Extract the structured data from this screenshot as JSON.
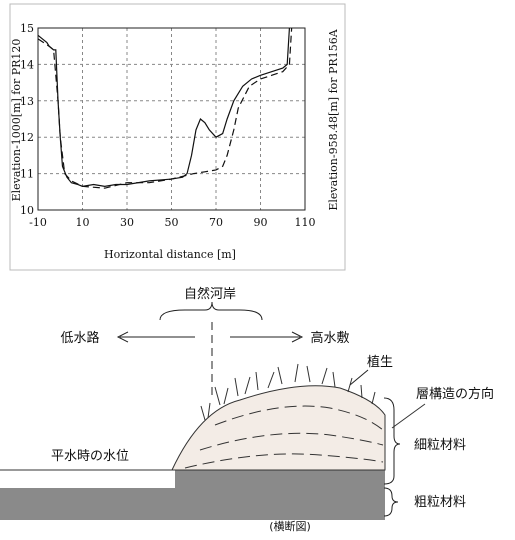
{
  "chart_data": {
    "type": "line",
    "xlabel": "Horizontal distance [m]",
    "ylabel": "Elevation-1000[m] for PR120",
    "y2label": "Elevation-958.48[m] for PR156A",
    "xlim": [
      -10,
      110
    ],
    "ylim": [
      10,
      15
    ],
    "xticks": [
      -10,
      10,
      30,
      50,
      70,
      90,
      110
    ],
    "yticks": [
      10,
      11,
      12,
      13,
      14,
      15
    ],
    "grid": true,
    "series": [
      {
        "color": "#111111",
        "dash": false,
        "x": [
          -10,
          -8,
          -6,
          -5,
          -3,
          -2,
          -1,
          0,
          1,
          3,
          5,
          8,
          10,
          15,
          20,
          25,
          30,
          40,
          50,
          55,
          57,
          59,
          61,
          63,
          65,
          67,
          70,
          73,
          75,
          78,
          82,
          86,
          90,
          95,
          100,
          102,
          103
        ],
        "values": [
          14.8,
          14.7,
          14.6,
          14.5,
          14.4,
          14.4,
          13.0,
          12.0,
          11.2,
          10.9,
          10.75,
          10.7,
          10.65,
          10.7,
          10.65,
          10.7,
          10.7,
          10.8,
          10.85,
          10.9,
          11.0,
          11.5,
          12.2,
          12.5,
          12.4,
          12.2,
          12.0,
          12.1,
          12.5,
          13.0,
          13.4,
          13.6,
          13.7,
          13.8,
          13.9,
          14.0,
          15.0
        ]
      },
      {
        "color": "#111111",
        "dash": true,
        "x": [
          -10,
          -5,
          -3,
          -1,
          0,
          2,
          5,
          10,
          20,
          30,
          40,
          50,
          60,
          65,
          70,
          73,
          75,
          78,
          80,
          85,
          90,
          95,
          100,
          103,
          104
        ],
        "values": [
          14.7,
          14.5,
          14.4,
          13.0,
          12.0,
          11.0,
          10.8,
          10.65,
          10.6,
          10.75,
          10.75,
          10.85,
          11.0,
          11.05,
          11.1,
          11.2,
          11.5,
          12.2,
          12.8,
          13.4,
          13.6,
          13.7,
          13.8,
          14.0,
          15.0
        ]
      }
    ]
  },
  "diagram": {
    "bank": "自然河岸",
    "low_channel": "低水路",
    "floodplain": "高水敷",
    "vegetation": "植生",
    "layer_direction": "層構造の方向",
    "water_level": "平水時の水位",
    "fine": "細粒材料",
    "coarse": "粗粒材料",
    "caption": "(横断図)"
  }
}
